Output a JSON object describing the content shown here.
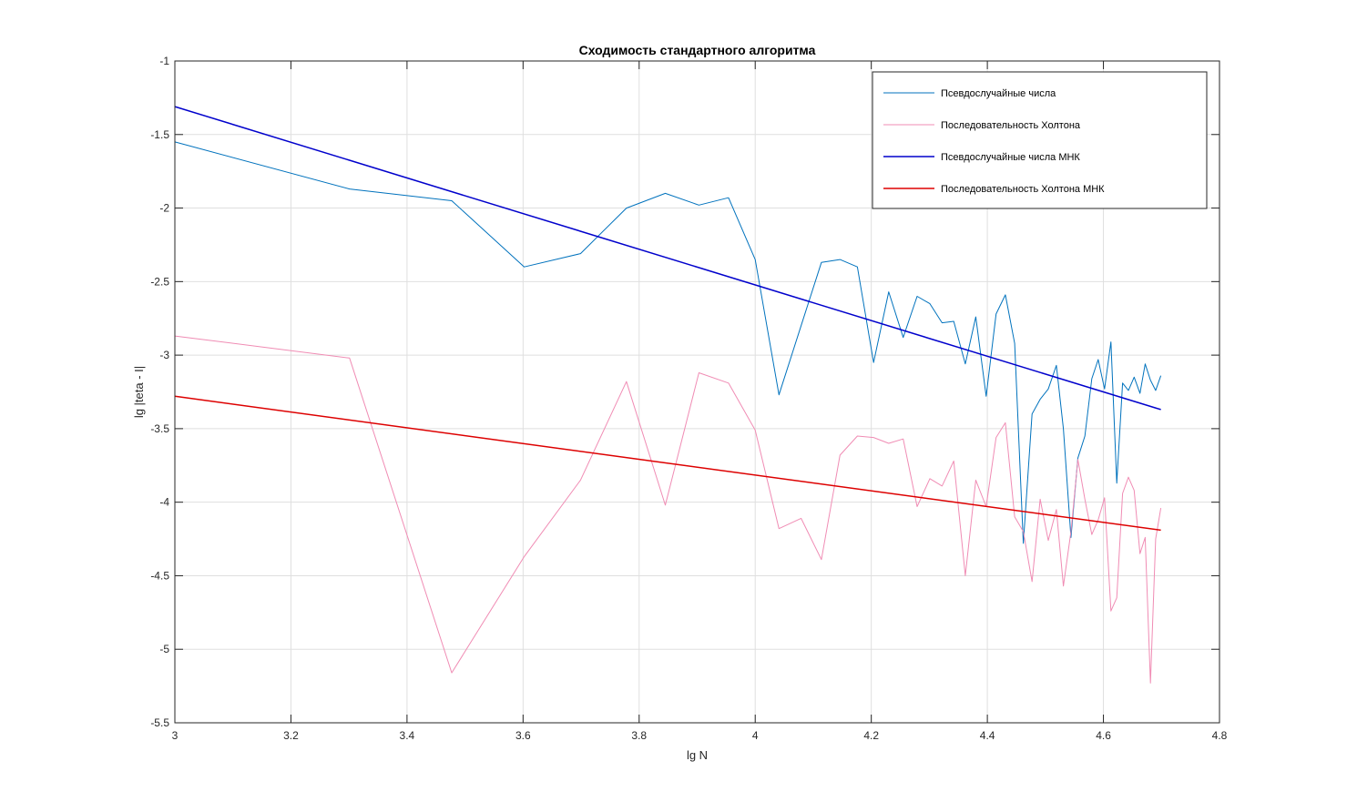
{
  "chart_data": {
    "type": "line",
    "title": "Сходимость стандартного алгоритма",
    "xlabel": "lg N",
    "ylabel": "lg |teta - I|",
    "xlim": [
      3,
      4.8
    ],
    "ylim": [
      -5.5,
      -1
    ],
    "xticks": [
      3,
      3.2,
      3.4,
      3.6,
      3.8,
      4,
      4.2,
      4.4,
      4.6,
      4.8
    ],
    "xtick_labels": [
      "3",
      "3.2",
      "3.4",
      "3.6",
      "3.8",
      "4",
      "4.2",
      "4.4",
      "4.6",
      "4.8"
    ],
    "yticks": [
      -1,
      -1.5,
      -2,
      -2.5,
      -3,
      -3.5,
      -4,
      -4.5,
      -5,
      -5.5
    ],
    "ytick_labels": [
      "-1",
      "-1.5",
      "-2",
      "-2.5",
      "-3",
      "-3.5",
      "-4",
      "-4.5",
      "-5",
      "-5.5"
    ],
    "grid": true,
    "legend_position": "top-right",
    "series": [
      {
        "name": "Псевдослучайные числа",
        "color": "#0072BD",
        "width": 1,
        "x": [
          3.0,
          3.301,
          3.477,
          3.602,
          3.699,
          3.778,
          3.845,
          3.903,
          3.954,
          4.0,
          4.041,
          4.079,
          4.114,
          4.146,
          4.176,
          4.204,
          4.23,
          4.255,
          4.279,
          4.301,
          4.322,
          4.342,
          4.362,
          4.38,
          4.398,
          4.415,
          4.431,
          4.447,
          4.462,
          4.477,
          4.491,
          4.505,
          4.519,
          4.531,
          4.544,
          4.556,
          4.568,
          4.58,
          4.591,
          4.602,
          4.613,
          4.623,
          4.633,
          4.643,
          4.653,
          4.663,
          4.672,
          4.681,
          4.69,
          4.699
        ],
        "y": [
          -1.55,
          -1.87,
          -1.95,
          -2.4,
          -2.31,
          -2.0,
          -1.9,
          -1.98,
          -1.93,
          -2.35,
          -3.27,
          -2.8,
          -2.37,
          -2.35,
          -2.4,
          -3.05,
          -2.57,
          -2.88,
          -2.6,
          -2.65,
          -2.78,
          -2.77,
          -3.06,
          -2.74,
          -3.28,
          -2.72,
          -2.59,
          -2.92,
          -4.28,
          -3.4,
          -3.3,
          -3.23,
          -3.07,
          -3.5,
          -4.24,
          -3.7,
          -3.55,
          -3.16,
          -3.03,
          -3.23,
          -2.91,
          -3.87,
          -3.19,
          -3.24,
          -3.15,
          -3.26,
          -3.06,
          -3.17,
          -3.24,
          -3.14
        ]
      },
      {
        "name": "Последовательность Холтона",
        "color": "#F08CB4",
        "width": 1,
        "x": [
          3.0,
          3.301,
          3.477,
          3.602,
          3.699,
          3.778,
          3.845,
          3.903,
          3.954,
          4.0,
          4.041,
          4.079,
          4.114,
          4.146,
          4.176,
          4.204,
          4.23,
          4.255,
          4.279,
          4.301,
          4.322,
          4.342,
          4.362,
          4.38,
          4.398,
          4.415,
          4.431,
          4.447,
          4.462,
          4.477,
          4.491,
          4.505,
          4.519,
          4.531,
          4.544,
          4.556,
          4.568,
          4.58,
          4.591,
          4.602,
          4.613,
          4.623,
          4.633,
          4.643,
          4.653,
          4.663,
          4.672,
          4.681,
          4.69,
          4.699
        ],
        "y": [
          -2.87,
          -3.02,
          -5.16,
          -4.37,
          -3.85,
          -3.18,
          -4.02,
          -3.12,
          -3.19,
          -3.51,
          -4.18,
          -4.11,
          -4.39,
          -3.68,
          -3.55,
          -3.56,
          -3.6,
          -3.57,
          -4.03,
          -3.84,
          -3.89,
          -3.72,
          -4.5,
          -3.85,
          -4.03,
          -3.56,
          -3.46,
          -4.1,
          -4.2,
          -4.54,
          -3.98,
          -4.26,
          -4.05,
          -4.57,
          -4.2,
          -3.71,
          -3.98,
          -4.22,
          -4.12,
          -3.97,
          -4.74,
          -4.65,
          -3.94,
          -3.83,
          -3.92,
          -4.35,
          -4.24,
          -5.23,
          -4.25,
          -4.04
        ]
      },
      {
        "name": "Псевдослучайные числа МНК",
        "color": "#0000CC",
        "width": 1.5,
        "x": [
          3.0,
          4.699
        ],
        "y": [
          -1.31,
          -3.37
        ]
      },
      {
        "name": "Последовательность Холтона МНК",
        "color": "#DD0000",
        "width": 1.5,
        "x": [
          3.0,
          4.699
        ],
        "y": [
          -3.28,
          -4.19
        ]
      }
    ]
  }
}
